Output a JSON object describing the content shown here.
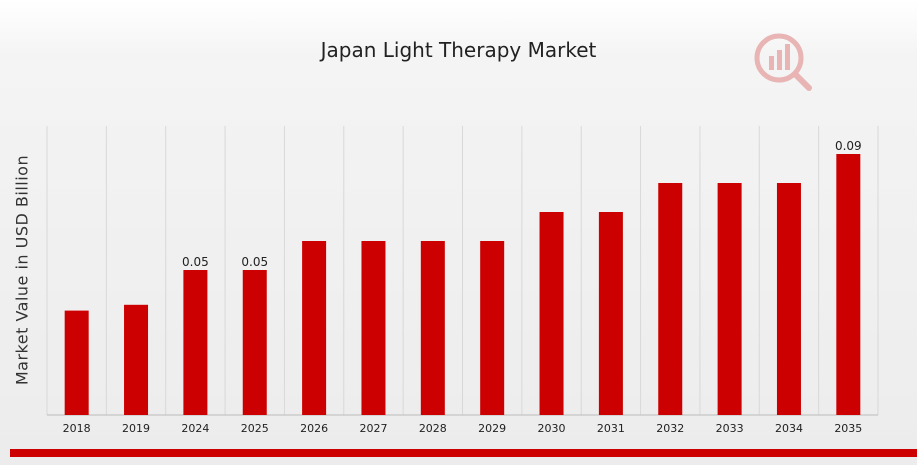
{
  "colors": {
    "bar": "#cc0000",
    "grid": "#d8d8d8",
    "accent": "#cc0000"
  },
  "logo": {
    "icon": "market-research-logo-icon"
  },
  "chart_data": {
    "type": "bar",
    "title": "Japan Light Therapy Market",
    "xlabel": "",
    "ylabel": "Market Value in USD Billion",
    "categories": [
      "2018",
      "2019",
      "2024",
      "2025",
      "2026",
      "2027",
      "2028",
      "2029",
      "2030",
      "2031",
      "2032",
      "2033",
      "2034",
      "2035"
    ],
    "values": [
      0.036,
      0.038,
      0.05,
      0.05,
      0.06,
      0.06,
      0.06,
      0.06,
      0.07,
      0.07,
      0.08,
      0.08,
      0.08,
      0.09
    ],
    "data_labels": [
      "",
      "",
      "0.05",
      "0.05",
      "",
      "",
      "",
      "",
      "",
      "",
      "",
      "",
      "",
      "0.09"
    ],
    "ylim": [
      0,
      0.09
    ],
    "grid": true,
    "legend": "none"
  }
}
